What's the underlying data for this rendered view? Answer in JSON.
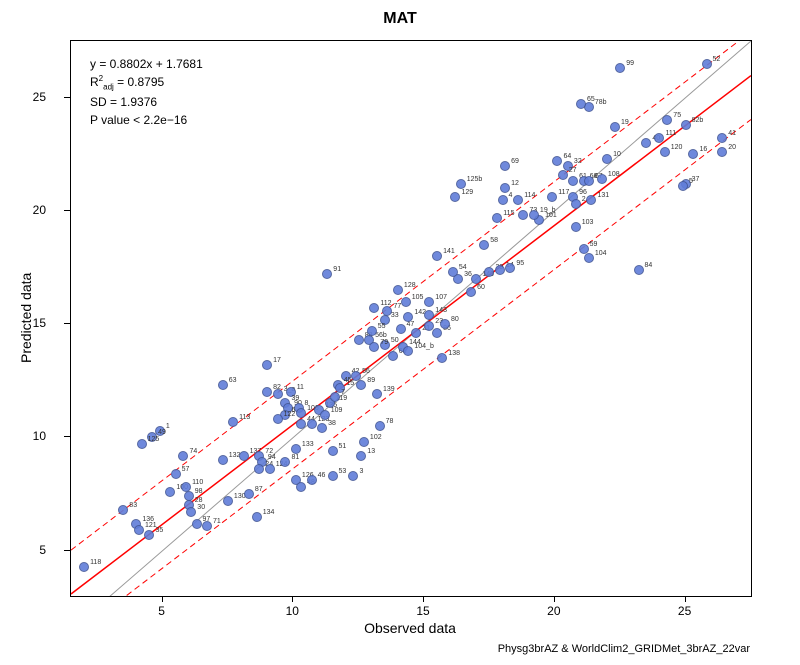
{
  "title": "MAT",
  "xlabel": "Observed data",
  "ylabel": "Predicted data",
  "footer": "Physg3brAZ & WorldClim2_GRIDMet_3brAZ_22var",
  "stats": {
    "equation": "y = 0.8802x + 1.7681",
    "r2_label": "R",
    "r2_sup": "2",
    "r2_sub": "adj",
    "r2_eq": " = 0.8795",
    "sd": "SD =  1.9376",
    "pvalue": "P value < 2.2e−16"
  },
  "plot": {
    "type": "scatter",
    "xlim": [
      1.5,
      27.5
    ],
    "ylim": [
      3.0,
      27.5
    ],
    "xticks": [
      5,
      10,
      15,
      20,
      25
    ],
    "yticks": [
      5,
      10,
      15,
      20,
      25
    ],
    "point_color": "#607dd9",
    "point_alpha": 0.9,
    "point_size": 8,
    "label_fontsize": 7,
    "background": "#ffffff",
    "border_color": "#000000",
    "regression": {
      "slope": 0.8802,
      "intercept": 1.7681,
      "color": "#ff0000",
      "width": 1.5,
      "dash": "none",
      "sd": 1.9376,
      "band_color": "#ff0000",
      "band_dash": "6,4",
      "band_width": 1
    },
    "identity_line": {
      "color": "#999999",
      "width": 1
    }
  },
  "points": [
    {
      "id": "118",
      "x": 2.0,
      "y": 4.3
    },
    {
      "id": "1",
      "x": 4.9,
      "y": 10.3
    },
    {
      "id": "49",
      "x": 4.6,
      "y": 10.0
    },
    {
      "id": "125",
      "x": 4.2,
      "y": 9.7
    },
    {
      "id": "83",
      "x": 3.5,
      "y": 6.8
    },
    {
      "id": "136",
      "x": 4.0,
      "y": 6.2
    },
    {
      "id": "121",
      "x": 4.1,
      "y": 5.9
    },
    {
      "id": "35",
      "x": 4.5,
      "y": 5.7
    },
    {
      "id": "74",
      "x": 5.8,
      "y": 9.2
    },
    {
      "id": "57",
      "x": 5.5,
      "y": 8.4
    },
    {
      "id": "100",
      "x": 5.3,
      "y": 7.6
    },
    {
      "id": "98",
      "x": 6.0,
      "y": 7.4
    },
    {
      "id": "110",
      "x": 5.9,
      "y": 7.8
    },
    {
      "id": "28",
      "x": 6.0,
      "y": 7.0
    },
    {
      "id": "30",
      "x": 6.1,
      "y": 6.7
    },
    {
      "id": "97",
      "x": 6.3,
      "y": 6.2
    },
    {
      "id": "71",
      "x": 6.7,
      "y": 6.1
    },
    {
      "id": "63",
      "x": 7.3,
      "y": 12.3
    },
    {
      "id": "113",
      "x": 7.7,
      "y": 10.7
    },
    {
      "id": "132",
      "x": 7.3,
      "y": 9.0
    },
    {
      "id": "137",
      "x": 8.1,
      "y": 9.2
    },
    {
      "id": "72",
      "x": 8.7,
      "y": 9.2
    },
    {
      "id": "94",
      "x": 8.8,
      "y": 8.9
    },
    {
      "id": "24",
      "x": 8.7,
      "y": 8.6
    },
    {
      "id": "124",
      "x": 9.1,
      "y": 8.6
    },
    {
      "id": "130",
      "x": 7.5,
      "y": 7.2
    },
    {
      "id": "87",
      "x": 8.3,
      "y": 7.5
    },
    {
      "id": "134",
      "x": 8.6,
      "y": 6.5
    },
    {
      "id": "17",
      "x": 9.0,
      "y": 13.2
    },
    {
      "id": "82",
      "x": 9.0,
      "y": 12.0
    },
    {
      "id": "3_a",
      "x": 9.4,
      "y": 11.9
    },
    {
      "id": "11",
      "x": 9.9,
      "y": 12.0
    },
    {
      "id": "39",
      "x": 9.7,
      "y": 11.5
    },
    {
      "id": "90",
      "x": 9.8,
      "y": 11.3
    },
    {
      "id": "8",
      "x": 10.2,
      "y": 11.3
    },
    {
      "id": "6",
      "x": 9.7,
      "y": 11.0
    },
    {
      "id": "106",
      "x": 10.3,
      "y": 11.1
    },
    {
      "id": "122",
      "x": 9.4,
      "y": 10.8
    },
    {
      "id": "81",
      "x": 9.7,
      "y": 8.9
    },
    {
      "id": "126",
      "x": 10.1,
      "y": 8.1
    },
    {
      "id": "48",
      "x": 10.3,
      "y": 7.8
    },
    {
      "id": "46",
      "x": 10.7,
      "y": 8.1
    },
    {
      "id": "44",
      "x": 10.3,
      "y": 10.6
    },
    {
      "id": "123",
      "x": 10.7,
      "y": 10.6
    },
    {
      "id": "38",
      "x": 11.1,
      "y": 10.4
    },
    {
      "id": "133",
      "x": 10.1,
      "y": 9.5
    },
    {
      "id": "51",
      "x": 11.5,
      "y": 9.4
    },
    {
      "id": "135",
      "x": 11.0,
      "y": 11.2
    },
    {
      "id": "109",
      "x": 11.2,
      "y": 11.0
    },
    {
      "id": "119",
      "x": 11.4,
      "y": 11.5
    },
    {
      "id": "53",
      "x": 11.5,
      "y": 8.3
    },
    {
      "id": "3",
      "x": 12.3,
      "y": 8.3
    },
    {
      "id": "13",
      "x": 12.6,
      "y": 9.2
    },
    {
      "id": "102",
      "x": 12.7,
      "y": 9.8
    },
    {
      "id": "78",
      "x": 13.3,
      "y": 10.5
    },
    {
      "id": "139",
      "x": 13.2,
      "y": 11.9
    },
    {
      "id": "89",
      "x": 12.6,
      "y": 12.3
    },
    {
      "id": "42",
      "x": 12.0,
      "y": 12.7
    },
    {
      "id": "56",
      "x": 12.4,
      "y": 12.7
    },
    {
      "id": "45",
      "x": 11.7,
      "y": 12.3
    },
    {
      "id": "15",
      "x": 11.8,
      "y": 12.2
    },
    {
      "id": "7",
      "x": 11.6,
      "y": 11.8
    },
    {
      "id": "91",
      "x": 11.3,
      "y": 17.2
    },
    {
      "id": "112",
      "x": 13.1,
      "y": 15.7
    },
    {
      "id": "77",
      "x": 13.6,
      "y": 15.6
    },
    {
      "id": "33",
      "x": 13.5,
      "y": 15.2
    },
    {
      "id": "88",
      "x": 12.5,
      "y": 14.3
    },
    {
      "id": "56b",
      "x": 12.9,
      "y": 14.3
    },
    {
      "id": "55",
      "x": 13.0,
      "y": 14.7
    },
    {
      "id": "50",
      "x": 13.5,
      "y": 14.1
    },
    {
      "id": "79",
      "x": 13.1,
      "y": 14.0
    },
    {
      "id": "68",
      "x": 13.8,
      "y": 13.6
    },
    {
      "id": "144",
      "x": 14.2,
      "y": 14.0
    },
    {
      "id": "104_b",
      "x": 14.4,
      "y": 13.8
    },
    {
      "id": "47",
      "x": 14.1,
      "y": 14.8
    },
    {
      "id": "21",
      "x": 14.7,
      "y": 14.6
    },
    {
      "id": "142",
      "x": 14.4,
      "y": 15.3
    },
    {
      "id": "105",
      "x": 14.3,
      "y": 16.0
    },
    {
      "id": "128",
      "x": 14.0,
      "y": 16.5
    },
    {
      "id": "107",
      "x": 15.2,
      "y": 16.0
    },
    {
      "id": "143",
      "x": 15.2,
      "y": 15.4
    },
    {
      "id": "86",
      "x": 15.5,
      "y": 14.6
    },
    {
      "id": "23",
      "x": 15.2,
      "y": 14.9
    },
    {
      "id": "80",
      "x": 15.8,
      "y": 15.0
    },
    {
      "id": "138",
      "x": 15.7,
      "y": 13.5
    },
    {
      "id": "141",
      "x": 15.5,
      "y": 18.0
    },
    {
      "id": "36",
      "x": 16.3,
      "y": 17.0
    },
    {
      "id": "54",
      "x": 16.1,
      "y": 17.3
    },
    {
      "id": "60",
      "x": 16.8,
      "y": 16.4
    },
    {
      "id": "140",
      "x": 17.0,
      "y": 17.0
    },
    {
      "id": "29",
      "x": 17.5,
      "y": 17.3
    },
    {
      "id": "14",
      "x": 17.9,
      "y": 17.4
    },
    {
      "id": "95",
      "x": 18.3,
      "y": 17.5
    },
    {
      "id": "58",
      "x": 17.3,
      "y": 18.5
    },
    {
      "id": "12",
      "x": 18.1,
      "y": 21.0
    },
    {
      "id": "4",
      "x": 18.0,
      "y": 20.5
    },
    {
      "id": "114",
      "x": 18.6,
      "y": 20.5
    },
    {
      "id": "115",
      "x": 17.8,
      "y": 19.7
    },
    {
      "id": "73",
      "x": 18.8,
      "y": 19.8
    },
    {
      "id": "101",
      "x": 19.4,
      "y": 19.6
    },
    {
      "id": "19_b",
      "x": 19.2,
      "y": 19.8
    },
    {
      "id": "69",
      "x": 18.1,
      "y": 22.0
    },
    {
      "id": "125b",
      "x": 16.4,
      "y": 21.2
    },
    {
      "id": "129",
      "x": 16.2,
      "y": 20.6
    },
    {
      "id": "117",
      "x": 19.9,
      "y": 20.6
    },
    {
      "id": "96",
      "x": 20.7,
      "y": 20.6
    },
    {
      "id": "2",
      "x": 20.8,
      "y": 20.3
    },
    {
      "id": "131",
      "x": 21.4,
      "y": 20.5
    },
    {
      "id": "103",
      "x": 20.8,
      "y": 19.3
    },
    {
      "id": "59",
      "x": 21.1,
      "y": 18.3
    },
    {
      "id": "104",
      "x": 21.3,
      "y": 17.9
    },
    {
      "id": "84",
      "x": 23.2,
      "y": 17.4
    },
    {
      "id": "64",
      "x": 20.1,
      "y": 22.2
    },
    {
      "id": "32",
      "x": 20.5,
      "y": 22.0
    },
    {
      "id": "27",
      "x": 20.3,
      "y": 21.6
    },
    {
      "id": "61",
      "x": 20.7,
      "y": 21.3
    },
    {
      "id": "66",
      "x": 21.1,
      "y": 21.3
    },
    {
      "id": "67",
      "x": 21.3,
      "y": 21.3
    },
    {
      "id": "108",
      "x": 21.8,
      "y": 21.4
    },
    {
      "id": "10",
      "x": 22.0,
      "y": 22.3
    },
    {
      "id": "19",
      "x": 22.3,
      "y": 23.7
    },
    {
      "id": "78b",
      "x": 21.3,
      "y": 24.6
    },
    {
      "id": "65",
      "x": 21.0,
      "y": 24.7
    },
    {
      "id": "99",
      "x": 22.5,
      "y": 26.3
    },
    {
      "id": "40",
      "x": 23.5,
      "y": 23.0
    },
    {
      "id": "111",
      "x": 24.0,
      "y": 23.2
    },
    {
      "id": "120",
      "x": 24.2,
      "y": 22.6
    },
    {
      "id": "75",
      "x": 24.3,
      "y": 24.0
    },
    {
      "id": "82b",
      "x": 25.0,
      "y": 23.8
    },
    {
      "id": "52",
      "x": 25.8,
      "y": 26.5
    },
    {
      "id": "16",
      "x": 25.3,
      "y": 22.5
    },
    {
      "id": "20",
      "x": 26.4,
      "y": 22.6
    },
    {
      "id": "41",
      "x": 26.4,
      "y": 23.2
    },
    {
      "id": "37",
      "x": 25.0,
      "y": 21.2
    },
    {
      "id": "5",
      "x": 24.9,
      "y": 21.1
    }
  ]
}
